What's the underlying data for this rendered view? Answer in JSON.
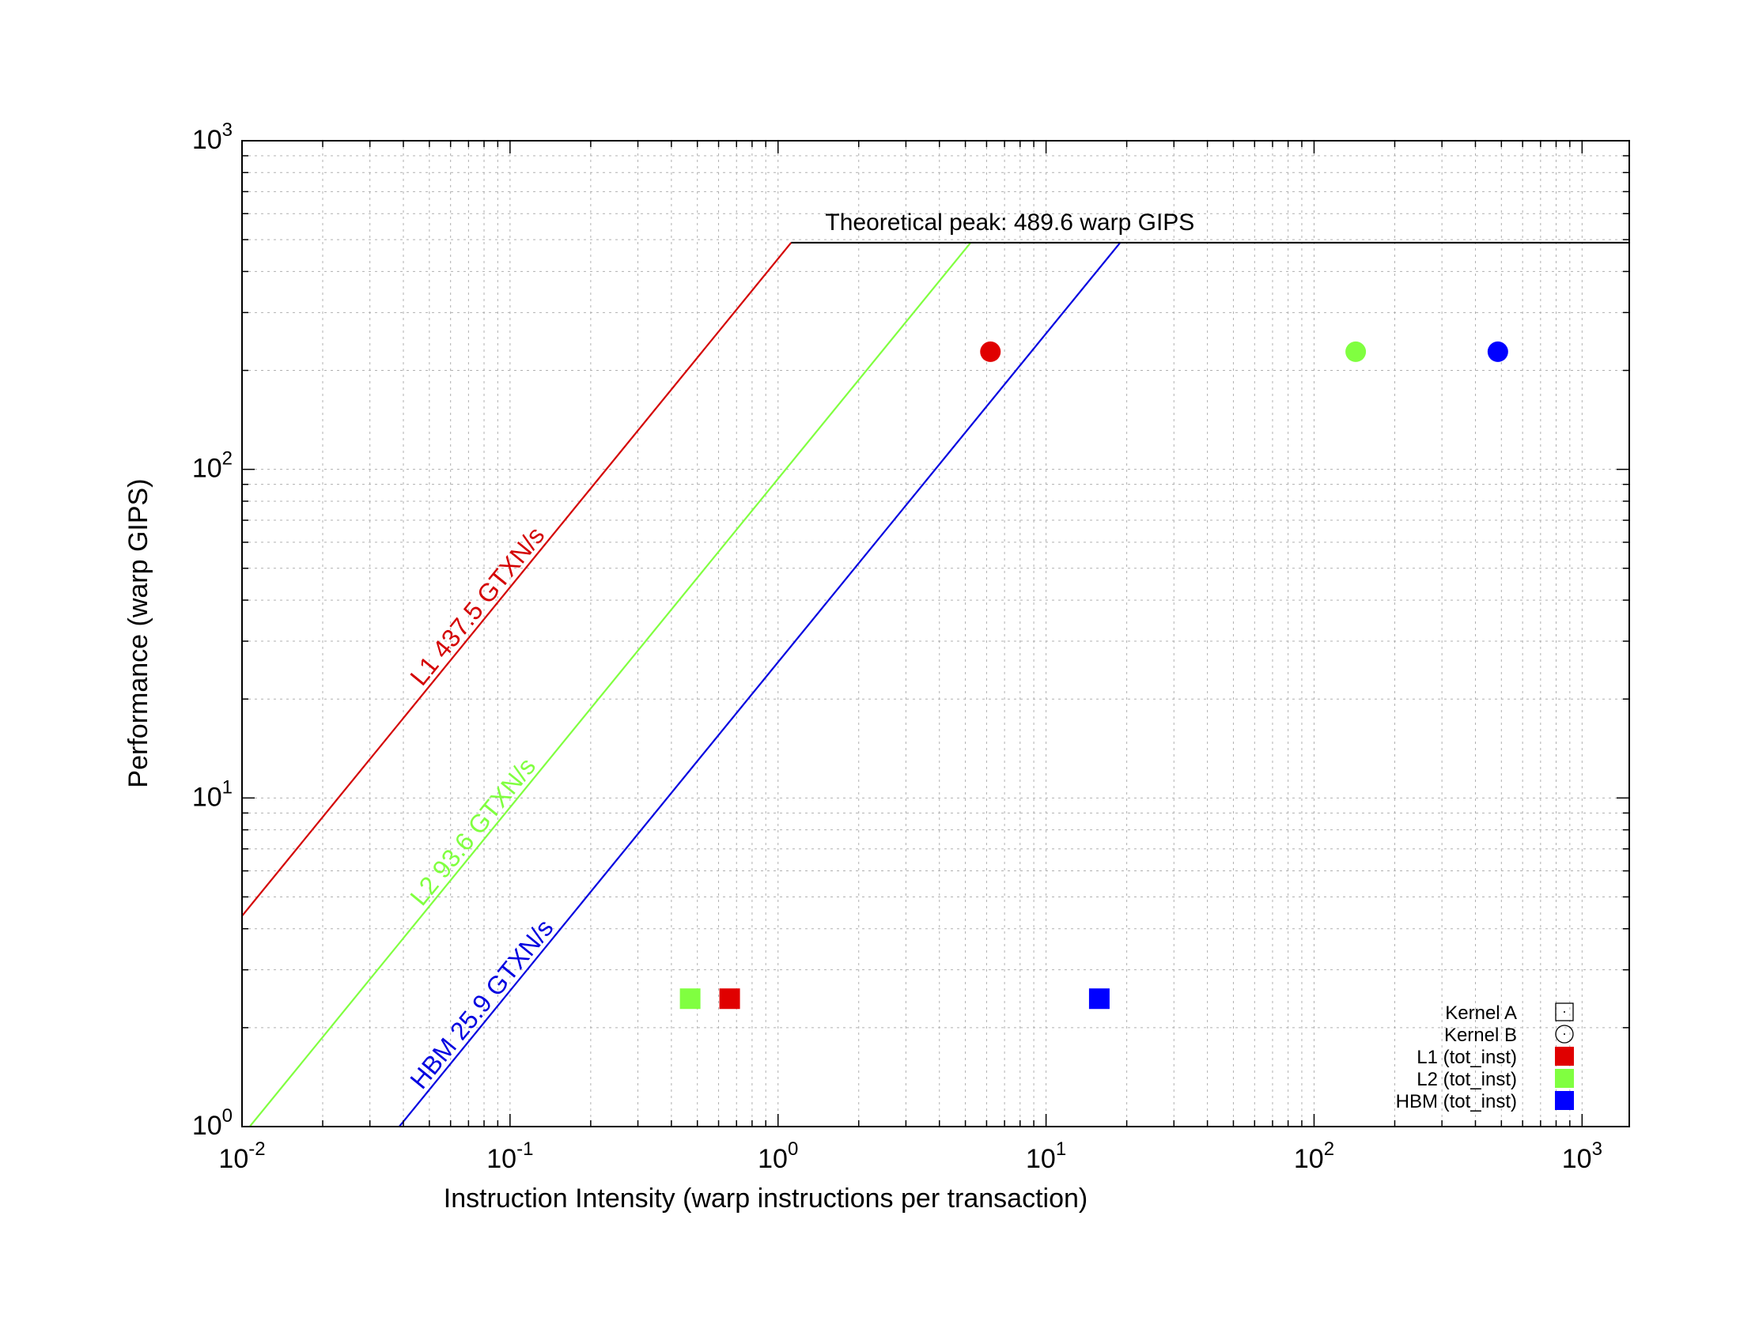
{
  "chart_data": {
    "type": "scatter",
    "title": "",
    "xlabel": "Instruction Intensity (warp instructions per transaction)",
    "ylabel": "Performance (warp GIPS)",
    "x_scale": "log",
    "y_scale": "log",
    "xlim": [
      0.01,
      1500
    ],
    "ylim": [
      1,
      1000
    ],
    "grid": true,
    "x_ticks": [
      {
        "base": "10",
        "exp": "-2",
        "value": 0.01
      },
      {
        "base": "10",
        "exp": "-1",
        "value": 0.1
      },
      {
        "base": "10",
        "exp": "0",
        "value": 1
      },
      {
        "base": "10",
        "exp": "1",
        "value": 10
      },
      {
        "base": "10",
        "exp": "2",
        "value": 100
      },
      {
        "base": "10",
        "exp": "3",
        "value": 1000
      }
    ],
    "y_ticks": [
      {
        "base": "10",
        "exp": "0",
        "value": 1
      },
      {
        "base": "10",
        "exp": "1",
        "value": 10
      },
      {
        "base": "10",
        "exp": "2",
        "value": 100
      },
      {
        "base": "10",
        "exp": "3",
        "value": 1000
      }
    ],
    "peak": {
      "label": "Theoretical peak: 489.6 warp GIPS",
      "value": 489.6
    },
    "rooflines": [
      {
        "label": "L1 437.5 GTXN/s",
        "bandwidth": 437.5,
        "color": "#d40000",
        "label_at_x": 0.047
      },
      {
        "label": "L2 93.6 GTXN/s",
        "bandwidth": 93.6,
        "color": "#80ff40",
        "label_at_x": 0.047
      },
      {
        "label": "HBM 25.9 GTXN/s",
        "bandwidth": 25.9,
        "color": "#0000e0",
        "label_at_x": 0.047
      }
    ],
    "series": [
      {
        "name": "L1 (tot_inst)",
        "color": "#e00000",
        "points": [
          {
            "kernel": "Kernel A",
            "x": 0.66,
            "y": 2.45
          },
          {
            "kernel": "Kernel B",
            "x": 6.2,
            "y": 228
          }
        ]
      },
      {
        "name": "L2 (tot_inst)",
        "color": "#80ff40",
        "points": [
          {
            "kernel": "Kernel A",
            "x": 0.47,
            "y": 2.45
          },
          {
            "kernel": "Kernel B",
            "x": 143,
            "y": 228
          }
        ]
      },
      {
        "name": "HBM (tot_inst)",
        "color": "#0000ff",
        "points": [
          {
            "kernel": "Kernel A",
            "x": 15.8,
            "y": 2.45
          },
          {
            "kernel": "Kernel B",
            "x": 485,
            "y": 228
          }
        ]
      }
    ],
    "legend": {
      "position": "bottom-right",
      "kernels": [
        {
          "label": "Kernel A",
          "marker": "square"
        },
        {
          "label": "Kernel B",
          "marker": "circle"
        }
      ]
    }
  }
}
